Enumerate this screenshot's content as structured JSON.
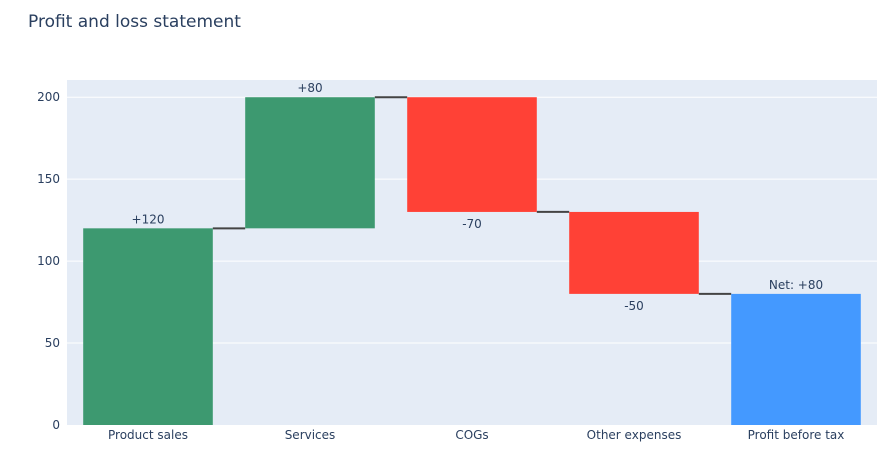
{
  "chart_data": {
    "type": "waterfall",
    "title": "Profit and loss statement",
    "categories": [
      "Product sales",
      "Services",
      "COGs",
      "Other expenses",
      "Profit before tax"
    ],
    "measures": [
      "relative",
      "relative",
      "relative",
      "relative",
      "total"
    ],
    "values": [
      120,
      80,
      -70,
      -50,
      80
    ],
    "text_labels": [
      "+120",
      "+80",
      "-70",
      "-50",
      "Net: +80"
    ],
    "y_ticks": [
      0,
      50,
      100,
      150,
      200
    ],
    "y_tick_labels": [
      "0",
      "50",
      "100",
      "150",
      "200"
    ],
    "ylim": [
      0,
      210.5
    ],
    "xlabel": "",
    "ylabel": "",
    "grid": true,
    "colors": {
      "increasing": "#3d9970",
      "decreasing": "#ff4136",
      "total": "#4499ff",
      "plot_background": "#e5ecf6",
      "connector": "#444444",
      "text": "#2a3f5f"
    }
  }
}
